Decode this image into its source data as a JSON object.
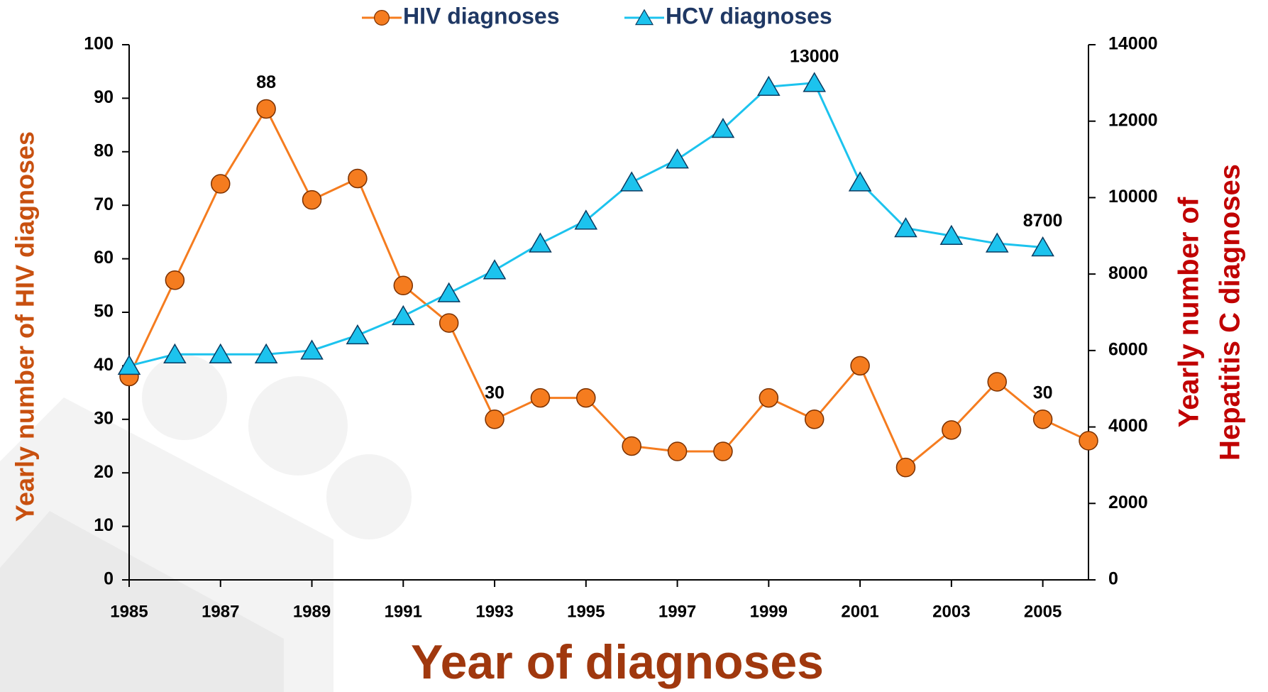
{
  "chart_data": {
    "type": "line",
    "x": [
      1985,
      1986,
      1987,
      1988,
      1989,
      1990,
      1991,
      1992,
      1993,
      1994,
      1995,
      1996,
      1997,
      1998,
      1999,
      2000,
      2001,
      2002,
      2003,
      2004,
      2005,
      2006
    ],
    "xlim": [
      1985,
      2006
    ],
    "xticks": [
      1985,
      1987,
      1989,
      1991,
      1993,
      1995,
      1997,
      1999,
      2001,
      2003,
      2005
    ],
    "ylim": [
      0,
      100
    ],
    "yticks": [
      0,
      10,
      20,
      30,
      40,
      50,
      60,
      70,
      80,
      90,
      100
    ],
    "y2lim": [
      0,
      14000
    ],
    "y2ticks": [
      0,
      2000,
      4000,
      6000,
      8000,
      10000,
      12000,
      14000
    ],
    "xlabel": "Year of diagnoses",
    "ylabel": "Yearly number of HIV diagnoses",
    "y2label": [
      "Yearly number of",
      "Hepatitis C diagnoses"
    ],
    "legend": "top",
    "series": [
      {
        "name": "HIV diagnoses",
        "color": "#f57c1f",
        "marker": "circle",
        "values": [
          38,
          56,
          74,
          88,
          71,
          75,
          55,
          48,
          30,
          34,
          34,
          25,
          24,
          24,
          34,
          30,
          40,
          21,
          28,
          37,
          30,
          26
        ],
        "labeled_points": [
          3,
          8,
          20
        ]
      },
      {
        "name": "HCV diagnoses",
        "color": "#1cc3ee",
        "marker": "triangle",
        "axis": "y2",
        "values": [
          5600,
          5900,
          5900,
          5900,
          6000,
          6400,
          6900,
          7500,
          8100,
          8800,
          9400,
          10400,
          11000,
          11800,
          12900,
          13000,
          10400,
          9200,
          9000,
          8800,
          8700,
          null
        ],
        "labeled_points": [
          15,
          20
        ]
      }
    ]
  }
}
